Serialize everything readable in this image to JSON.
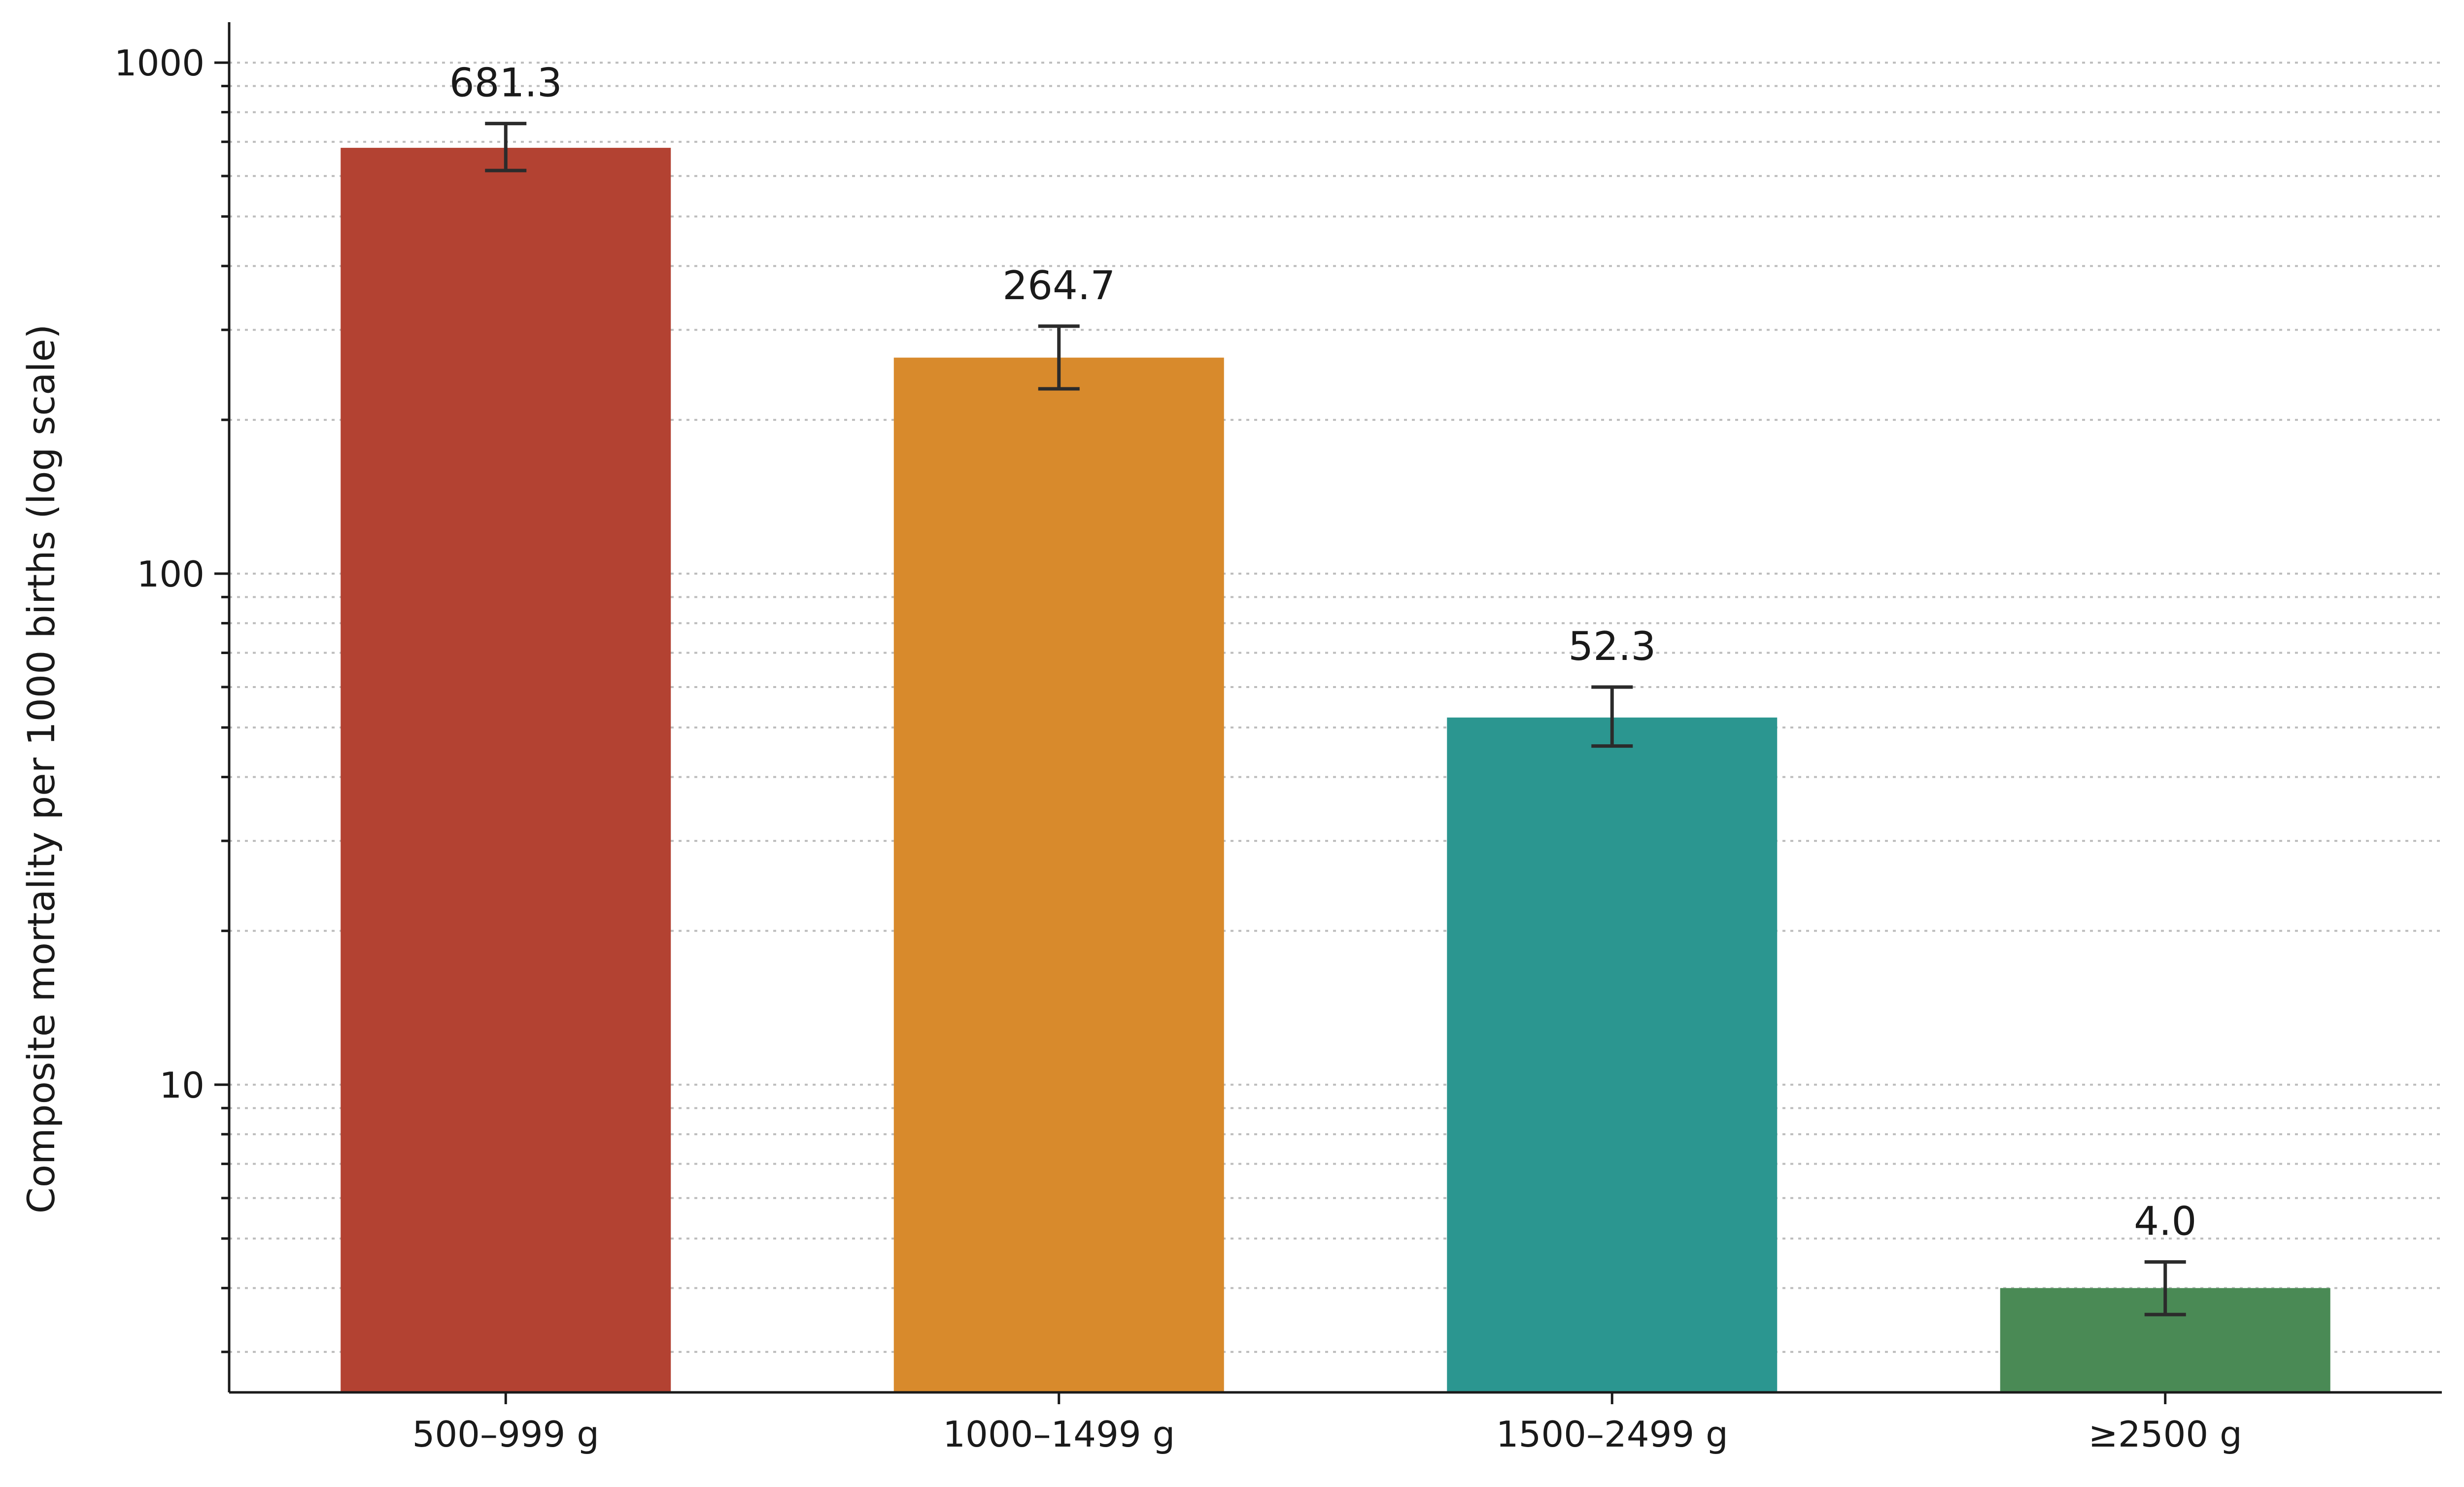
{
  "chart_data": {
    "type": "bar",
    "title": "",
    "xlabel": "",
    "ylabel": "Composite mortality per 1000 births (log scale)",
    "yscale": "log",
    "ylim": [
      2.5,
      1200
    ],
    "y_ticks": [
      10,
      100,
      1000
    ],
    "y_tick_labels": [
      "10",
      "100",
      "1000"
    ],
    "grid": "y-dotted (major and minor)",
    "categories": [
      "500–999 g",
      "1000–1499 g",
      "1500–2499 g",
      "≥2500 g"
    ],
    "values": [
      681.3,
      264.7,
      52.3,
      4.0
    ],
    "value_labels": [
      "681.3",
      "264.7",
      "52.3",
      "4.0"
    ],
    "error_low": [
      615,
      230,
      46,
      3.55
    ],
    "error_high": [
      760,
      305,
      60,
      4.5
    ],
    "colors": [
      "#b34232",
      "#d88a2c",
      "#2b9690",
      "#4a8a55"
    ]
  }
}
